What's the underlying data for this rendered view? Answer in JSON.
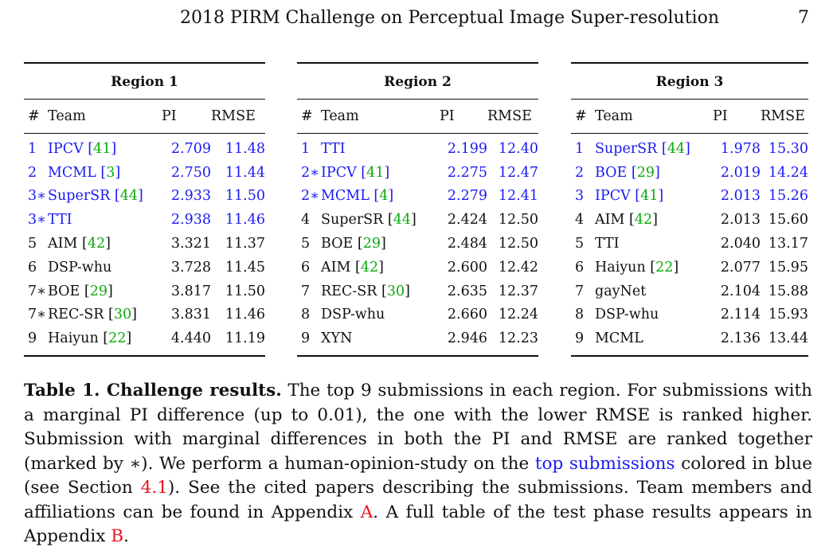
{
  "header": {
    "title": "2018 PIRM Challenge on Perceptual Image Super-resolution",
    "page_number": "7"
  },
  "columns": {
    "rank": "#",
    "team": "Team",
    "pi": "PI",
    "rmse": "RMSE"
  },
  "regions": [
    {
      "title": "Region 1",
      "rows": [
        {
          "rank": "1",
          "team": "IPCV",
          "cite": "41",
          "pi": "2.709",
          "rmse": "11.48",
          "highlight": true
        },
        {
          "rank": "2",
          "team": "MCML",
          "cite": "3",
          "pi": "2.750",
          "rmse": "11.44",
          "highlight": true
        },
        {
          "rank": "3∗",
          "team": "SuperSR",
          "cite": "44",
          "pi": "2.933",
          "rmse": "11.50",
          "highlight": true
        },
        {
          "rank": "3∗",
          "team": "TTI",
          "cite": "",
          "pi": "2.938",
          "rmse": "11.46",
          "highlight": true
        },
        {
          "rank": "5",
          "team": "AIM",
          "cite": "42",
          "pi": "3.321",
          "rmse": "11.37",
          "highlight": false
        },
        {
          "rank": "6",
          "team": "DSP-whu",
          "cite": "",
          "pi": "3.728",
          "rmse": "11.45",
          "highlight": false
        },
        {
          "rank": "7∗",
          "team": "BOE",
          "cite": "29",
          "pi": "3.817",
          "rmse": "11.50",
          "highlight": false
        },
        {
          "rank": "7∗",
          "team": "REC-SR",
          "cite": "30",
          "pi": "3.831",
          "rmse": "11.46",
          "highlight": false
        },
        {
          "rank": "9",
          "team": "Haiyun",
          "cite": "22",
          "pi": "4.440",
          "rmse": "11.19",
          "highlight": false
        }
      ]
    },
    {
      "title": "Region 2",
      "rows": [
        {
          "rank": "1",
          "team": "TTI",
          "cite": "",
          "pi": "2.199",
          "rmse": "12.40",
          "highlight": true
        },
        {
          "rank": "2∗",
          "team": "IPCV",
          "cite": "41",
          "pi": "2.275",
          "rmse": "12.47",
          "highlight": true
        },
        {
          "rank": "2∗",
          "team": "MCML",
          "cite": "4",
          "pi": "2.279",
          "rmse": "12.41",
          "highlight": true
        },
        {
          "rank": "4",
          "team": "SuperSR",
          "cite": "44",
          "pi": "2.424",
          "rmse": "12.50",
          "highlight": false
        },
        {
          "rank": "5",
          "team": "BOE",
          "cite": "29",
          "pi": "2.484",
          "rmse": "12.50",
          "highlight": false
        },
        {
          "rank": "6",
          "team": "AIM",
          "cite": "42",
          "pi": "2.600",
          "rmse": "12.42",
          "highlight": false
        },
        {
          "rank": "7",
          "team": "REC-SR",
          "cite": "30",
          "pi": "2.635",
          "rmse": "12.37",
          "highlight": false
        },
        {
          "rank": "8",
          "team": "DSP-whu",
          "cite": "",
          "pi": "2.660",
          "rmse": "12.24",
          "highlight": false
        },
        {
          "rank": "9",
          "team": "XYN",
          "cite": "",
          "pi": "2.946",
          "rmse": "12.23",
          "highlight": false
        }
      ]
    },
    {
      "title": "Region 3",
      "rows": [
        {
          "rank": "1",
          "team": "SuperSR",
          "cite": "44",
          "pi": "1.978",
          "rmse": "15.30",
          "highlight": true
        },
        {
          "rank": "2",
          "team": "BOE",
          "cite": "29",
          "pi": "2.019",
          "rmse": "14.24",
          "highlight": true
        },
        {
          "rank": "3",
          "team": "IPCV",
          "cite": "41",
          "pi": "2.013",
          "rmse": "15.26",
          "highlight": true
        },
        {
          "rank": "4",
          "team": "AIM",
          "cite": "42",
          "pi": "2.013",
          "rmse": "15.60",
          "highlight": false
        },
        {
          "rank": "5",
          "team": "TTI",
          "cite": "",
          "pi": "2.040",
          "rmse": "13.17",
          "highlight": false
        },
        {
          "rank": "6",
          "team": "Haiyun",
          "cite": "22",
          "pi": "2.077",
          "rmse": "15.95",
          "highlight": false
        },
        {
          "rank": "7",
          "team": "gayNet",
          "cite": "",
          "pi": "2.104",
          "rmse": "15.88",
          "highlight": false
        },
        {
          "rank": "8",
          "team": "DSP-whu",
          "cite": "",
          "pi": "2.114",
          "rmse": "15.93",
          "highlight": false
        },
        {
          "rank": "9",
          "team": "MCML",
          "cite": "",
          "pi": "2.136",
          "rmse": "13.44",
          "highlight": false
        }
      ]
    }
  ],
  "caption": {
    "label": "Table 1. Challenge results.",
    "text_1": " The top 9 submissions in each region. For submissions with a marginal PI difference (up to 0.01), the one with the lower RMSE is ranked higher. Submission with marginal differences in both the PI and RMSE are ranked together (marked by ∗). We perform a human-opinion-study on the ",
    "link_top": "top submissions",
    "text_2": " colored in blue (see Section ",
    "link_section": "4.1",
    "text_3": "). See the cited papers describing the submissions. Team members and affiliations can be found in Appendix ",
    "link_appendix_a": "A",
    "text_4": ". A full table of the test phase results appears in Appendix ",
    "link_appendix_b": "B",
    "text_5": "."
  },
  "colors": {
    "highlight": "#1a1af2",
    "citation": "#0ba80b",
    "reference": "#e8131f"
  }
}
